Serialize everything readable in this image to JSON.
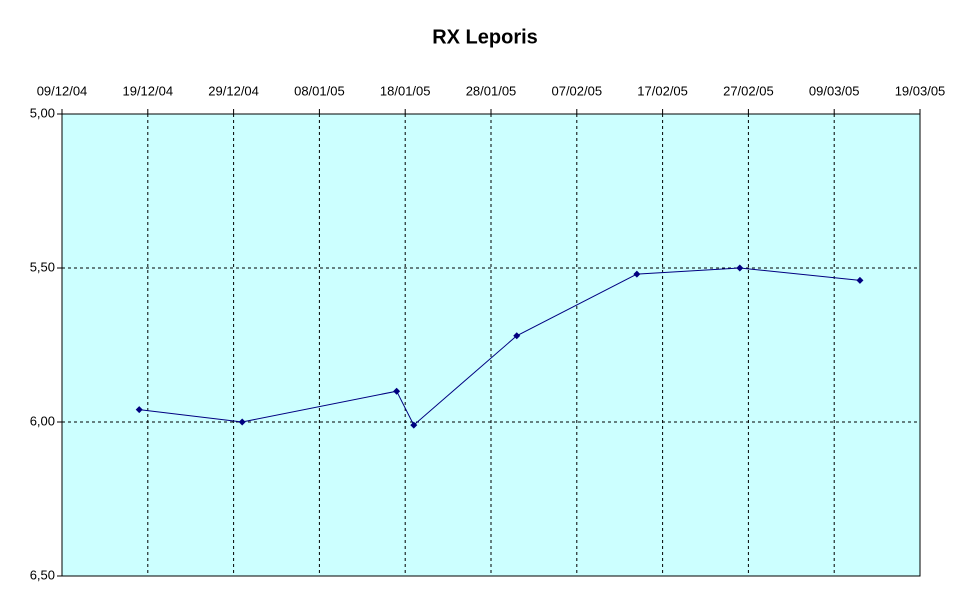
{
  "chart_data": {
    "type": "line",
    "title": "RX Leporis",
    "x": [
      "18/12/04",
      "30/12/04",
      "17/01/05",
      "19/01/05",
      "31/01/05",
      "14/02/05",
      "26/02/05",
      "12/03/05"
    ],
    "series": [
      {
        "color": "#000080",
        "values": [
          5.96,
          6.0,
          5.9,
          6.01,
          5.72,
          5.52,
          5.5,
          5.54
        ]
      }
    ],
    "xlim": [
      "09/12/04",
      "19/03/05"
    ],
    "xticks": [
      "09/12/04",
      "19/12/04",
      "29/12/04",
      "08/01/05",
      "18/01/05",
      "28/01/05",
      "07/02/05",
      "17/02/05",
      "27/02/05",
      "09/03/05",
      "19/03/05"
    ],
    "ylim": [
      5,
      6.5
    ],
    "yticks": [
      {
        "value": 5,
        "label": "5,00"
      },
      {
        "value": 5.5,
        "label": "5,50"
      },
      {
        "value": 6,
        "label": "6,00"
      },
      {
        "value": 6.5,
        "label": "6,50"
      }
    ],
    "y_reversed": true,
    "grid": true,
    "plot_background": "#ccffff"
  }
}
